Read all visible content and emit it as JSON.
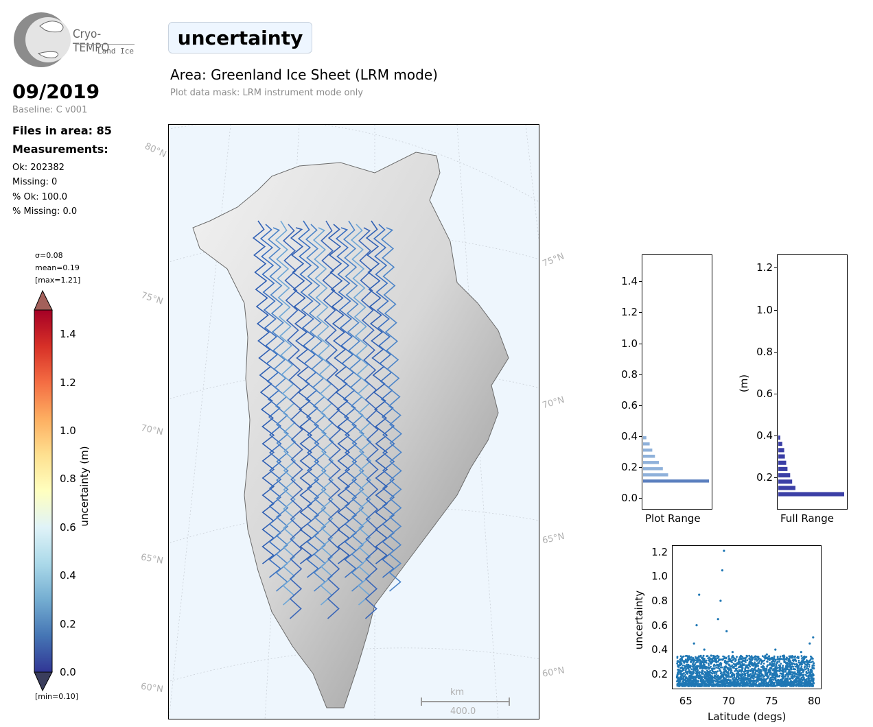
{
  "logo": {
    "name": "Cryo-TEMPO",
    "sub": "Land Ice"
  },
  "title": "uncertainty",
  "area_title": "Area: Greenland Ice Sheet (LRM mode)",
  "mask_note": "Plot data mask: LRM instrument mode only",
  "date": "09/2019",
  "baseline": "Baseline: C v001",
  "files_in_area": "Files in area: 85",
  "measurements_heading": "Measurements:",
  "stats": [
    "Ok: 202382",
    "Missing: 0",
    "% Ok: 100.0",
    "% Missing: 0.0"
  ],
  "colorbar": {
    "sigma": "σ=0.08",
    "mean": "mean=0.19",
    "max": "[max=1.21]",
    "min": "[min=0.10]",
    "label": "uncertainty (m)",
    "ticks": [
      "1.4",
      "1.2",
      "1.0",
      "0.8",
      "0.6",
      "0.4",
      "0.2",
      "0.0"
    ],
    "range": [
      0.0,
      1.5
    ],
    "colormap": "RdYlBu_r"
  },
  "map": {
    "lat_labels_left": [
      "80°N",
      "75°N",
      "70°N",
      "65°N",
      "60°N"
    ],
    "lat_labels_right": [
      "75°N",
      "70°N",
      "65°N",
      "60°N"
    ],
    "scale_unit": "km",
    "scale_value": "400.0",
    "background": "#eef6fd"
  },
  "chart_data": [
    {
      "type": "bar",
      "orientation": "horizontal",
      "title": "",
      "xlabel": "Plot Range",
      "ylabel": "",
      "ylim": [
        -0.07,
        1.57
      ],
      "yticks": [
        "0.0",
        "0.2",
        "0.4",
        "0.6",
        "0.8",
        "1.0",
        "1.2",
        "1.4"
      ],
      "categories": [
        0.1,
        0.14,
        0.18,
        0.22,
        0.26,
        0.3,
        0.34,
        0.38
      ],
      "values": [
        1.0,
        0.38,
        0.3,
        0.24,
        0.18,
        0.14,
        0.1,
        0.05
      ]
    },
    {
      "type": "bar",
      "orientation": "horizontal",
      "title": "",
      "xlabel": "Full Range",
      "ylabel": "(m)",
      "ylim": [
        0.05,
        1.26
      ],
      "yticks": [
        "0.2",
        "0.4",
        "0.6",
        "0.8",
        "1.0",
        "1.2"
      ],
      "categories": [
        0.11,
        0.14,
        0.17,
        0.2,
        0.23,
        0.26,
        0.29,
        0.32,
        0.35,
        0.38
      ],
      "values": [
        1.0,
        0.26,
        0.21,
        0.18,
        0.14,
        0.12,
        0.1,
        0.09,
        0.06,
        0.03
      ]
    },
    {
      "type": "scatter",
      "title": "",
      "xlabel": "Latitude (degs)",
      "ylabel": "uncertainty",
      "xlim": [
        63.5,
        80.8
      ],
      "ylim": [
        0.08,
        1.25
      ],
      "xticks": [
        "65",
        "70",
        "75",
        "80"
      ],
      "yticks": [
        "0.2",
        "0.4",
        "0.6",
        "0.8",
        "1.0",
        "1.2"
      ],
      "color": "#1f77b4",
      "series": [
        {
          "name": "",
          "x": [
            64.2,
            64.8,
            65.5,
            66.0,
            66.3,
            66.6,
            67.2,
            68.0,
            68.8,
            69.1,
            69.3,
            69.5,
            69.8,
            70.5,
            71.5,
            72.5,
            73.5,
            74.5,
            75.5,
            76.5,
            77.5,
            78.5,
            79.5,
            79.9
          ],
          "y": [
            0.22,
            0.3,
            0.32,
            0.45,
            0.6,
            0.85,
            0.4,
            0.35,
            0.65,
            0.8,
            1.05,
            1.21,
            0.55,
            0.38,
            0.32,
            0.3,
            0.34,
            0.36,
            0.4,
            0.35,
            0.34,
            0.38,
            0.45,
            0.5
          ]
        }
      ]
    }
  ]
}
